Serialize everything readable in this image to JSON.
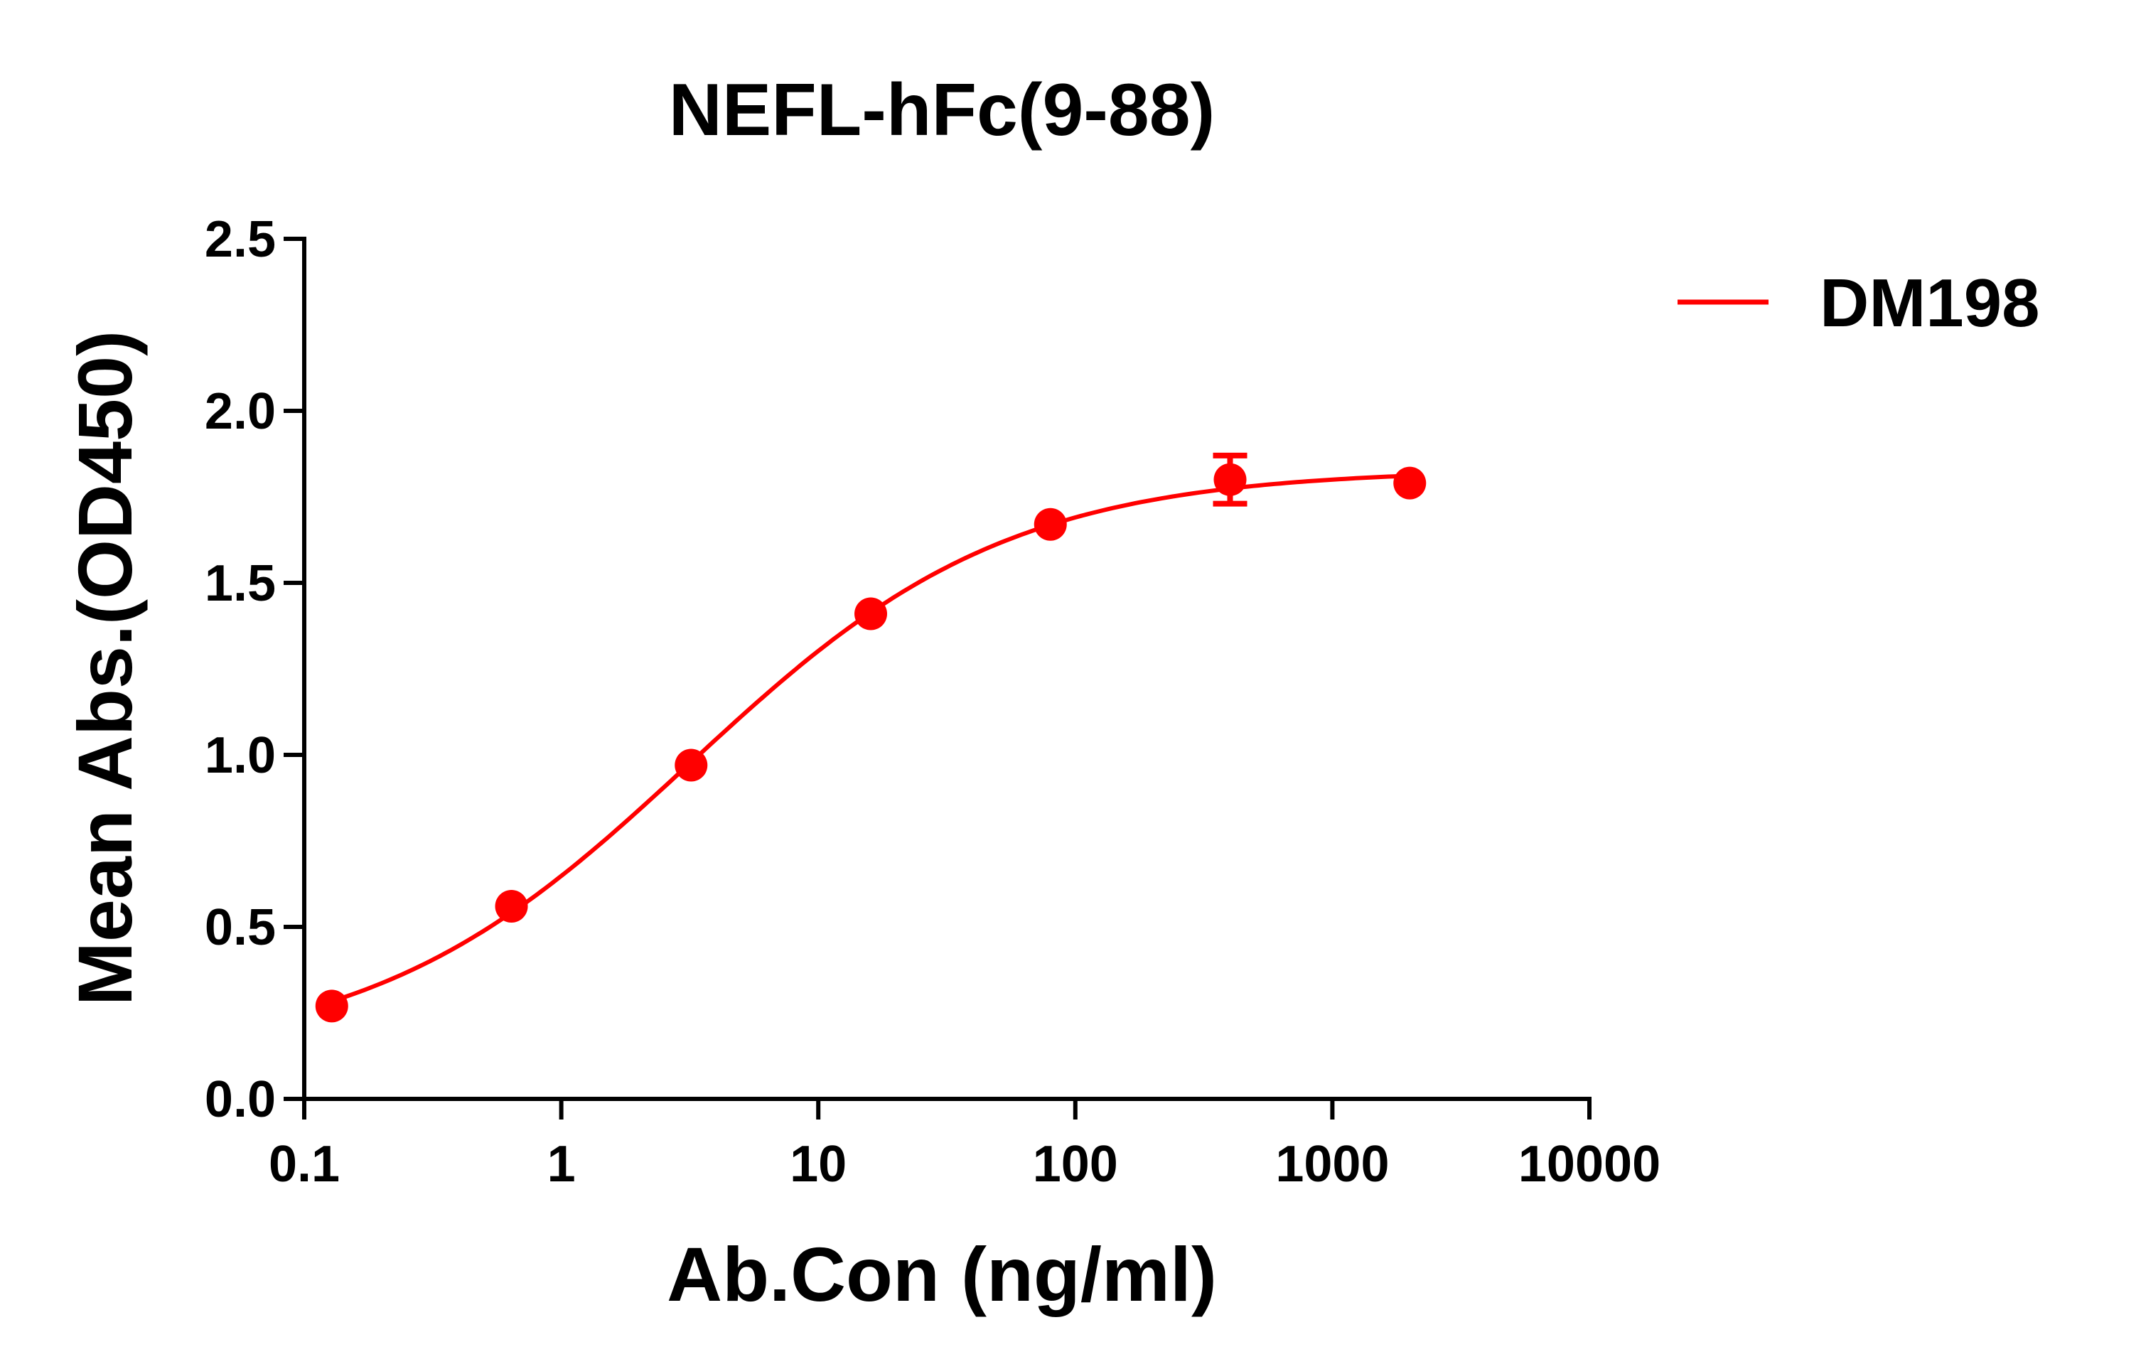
{
  "chart_data": {
    "type": "scatter",
    "title": "NEFL-hFc(9-88)",
    "xlabel": "Ab.Con (ng/ml)",
    "ylabel": "Mean Abs.(OD450)",
    "x_scale": "log",
    "xlim": [
      0.1,
      10000
    ],
    "ylim": [
      0.0,
      2.5
    ],
    "x_ticks": [
      0.1,
      1,
      10,
      100,
      1000,
      10000
    ],
    "x_tick_labels": [
      "0.1",
      "1",
      "10",
      "100",
      "1000",
      "10000"
    ],
    "y_ticks": [
      0.0,
      0.5,
      1.0,
      1.5,
      2.0,
      2.5
    ],
    "y_tick_labels": [
      "0.0",
      "0.5",
      "1.0",
      "1.5",
      "2.0",
      "2.5"
    ],
    "grid": false,
    "legend_position": "top-right",
    "fit_curve": "4PL",
    "series": [
      {
        "name": "DM198",
        "color": "#ff0000",
        "x": [
          0.128,
          0.64,
          3.2,
          16,
          80,
          400,
          2000
        ],
        "y": [
          0.27,
          0.56,
          0.97,
          1.41,
          1.67,
          1.8,
          1.79
        ],
        "y_err": [
          0,
          0,
          0,
          0,
          0,
          0.07,
          0
        ]
      }
    ]
  }
}
